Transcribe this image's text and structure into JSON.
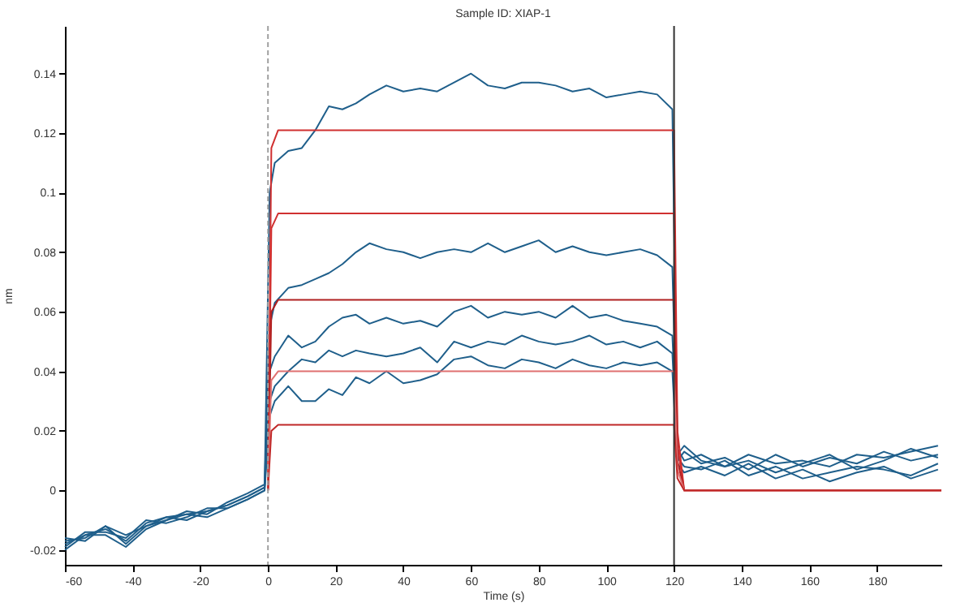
{
  "chart_data": {
    "type": "line",
    "title": "Sample ID: XIAP-1",
    "xlabel": "Time (s)",
    "ylabel": "nm",
    "xlim": [
      -60,
      199
    ],
    "ylim": [
      -0.025,
      0.156
    ],
    "xticks": [
      -60,
      -40,
      -20,
      0,
      20,
      40,
      60,
      80,
      100,
      120,
      140,
      160,
      180
    ],
    "yticks": [
      -0.02,
      0,
      0.02,
      0.04,
      0.06,
      0.08,
      0.1,
      0.12,
      0.14
    ],
    "grid": false,
    "marker": "none",
    "line_style": "solid",
    "ref_lines": [
      {
        "axis": "x",
        "value": 0,
        "color": "#a0a0a0",
        "line_style": "dashed"
      },
      {
        "axis": "x",
        "value": 120,
        "color": "#303030",
        "line_style": "solid"
      }
    ],
    "series": [
      {
        "color": "#1f5f8b",
        "x": [
          -60,
          -54,
          -48,
          -42,
          -36,
          -30,
          -24,
          -18,
          -12,
          -6,
          -1,
          0.5,
          2,
          6,
          10,
          14,
          18,
          22,
          26,
          30,
          35,
          40,
          45,
          50,
          55,
          60,
          65,
          70,
          75,
          80,
          85,
          90,
          95,
          100,
          105,
          110,
          115,
          119.5,
          121,
          123,
          128,
          135,
          142,
          150,
          158,
          166,
          174,
          182,
          190,
          198
        ],
        "values": [
          -0.018,
          -0.015,
          -0.013,
          -0.017,
          -0.011,
          -0.009,
          -0.008,
          -0.007,
          -0.005,
          -0.002,
          0.001,
          0.1,
          0.11,
          0.114,
          0.115,
          0.121,
          0.129,
          0.128,
          0.13,
          0.133,
          0.136,
          0.134,
          0.135,
          0.134,
          0.137,
          0.14,
          0.136,
          0.135,
          0.137,
          0.137,
          0.136,
          0.134,
          0.135,
          0.132,
          0.133,
          0.134,
          0.133,
          0.128,
          0.012,
          0.015,
          0.01,
          0.008,
          0.012,
          0.009,
          0.01,
          0.008,
          0.012,
          0.011,
          0.013,
          0.015
        ]
      },
      {
        "color": "#1f5f8b",
        "x": [
          -60,
          -54,
          -48,
          -42,
          -36,
          -30,
          -24,
          -18,
          -12,
          -6,
          -1,
          0.5,
          2,
          6,
          10,
          14,
          18,
          22,
          26,
          30,
          35,
          40,
          45,
          50,
          55,
          60,
          65,
          70,
          75,
          80,
          85,
          90,
          95,
          100,
          105,
          110,
          115,
          119.5,
          121,
          123,
          128,
          135,
          142,
          150,
          158,
          166,
          174,
          182,
          190,
          198
        ],
        "values": [
          -0.016,
          -0.017,
          -0.012,
          -0.015,
          -0.012,
          -0.01,
          -0.007,
          -0.008,
          -0.004,
          -0.001,
          0.002,
          0.055,
          0.063,
          0.068,
          0.069,
          0.071,
          0.073,
          0.076,
          0.08,
          0.083,
          0.081,
          0.08,
          0.078,
          0.08,
          0.081,
          0.08,
          0.083,
          0.08,
          0.082,
          0.084,
          0.08,
          0.082,
          0.08,
          0.079,
          0.08,
          0.081,
          0.079,
          0.075,
          0.01,
          0.013,
          0.009,
          0.011,
          0.007,
          0.012,
          0.008,
          0.011,
          0.009,
          0.013,
          0.01,
          0.012
        ]
      },
      {
        "color": "#1f5f8b",
        "x": [
          -60,
          -54,
          -48,
          -42,
          -36,
          -30,
          -24,
          -18,
          -12,
          -6,
          -1,
          0.5,
          2,
          6,
          10,
          14,
          18,
          22,
          26,
          30,
          35,
          40,
          45,
          50,
          55,
          60,
          65,
          70,
          75,
          80,
          85,
          90,
          95,
          100,
          105,
          110,
          115,
          119.5,
          121,
          123,
          128,
          135,
          142,
          150,
          158,
          166,
          174,
          182,
          190,
          198
        ],
        "values": [
          -0.019,
          -0.014,
          -0.014,
          -0.016,
          -0.01,
          -0.011,
          -0.009,
          -0.006,
          -0.006,
          -0.003,
          0.0,
          0.04,
          0.045,
          0.052,
          0.048,
          0.05,
          0.055,
          0.058,
          0.059,
          0.056,
          0.058,
          0.056,
          0.057,
          0.055,
          0.06,
          0.062,
          0.058,
          0.06,
          0.059,
          0.06,
          0.058,
          0.062,
          0.058,
          0.059,
          0.057,
          0.056,
          0.055,
          0.052,
          0.014,
          0.01,
          0.012,
          0.008,
          0.01,
          0.006,
          0.009,
          0.012,
          0.007,
          0.01,
          0.014,
          0.011
        ]
      },
      {
        "color": "#1f5f8b",
        "x": [
          -60,
          -54,
          -48,
          -42,
          -36,
          -30,
          -24,
          -18,
          -12,
          -6,
          -1,
          0.5,
          2,
          6,
          10,
          14,
          18,
          22,
          26,
          30,
          35,
          40,
          45,
          50,
          55,
          60,
          65,
          70,
          75,
          80,
          85,
          90,
          95,
          100,
          105,
          110,
          115,
          119.5,
          121,
          123,
          128,
          135,
          142,
          150,
          158,
          166,
          174,
          182,
          190,
          198
        ],
        "values": [
          -0.017,
          -0.016,
          -0.012,
          -0.018,
          -0.012,
          -0.009,
          -0.01,
          -0.007,
          -0.005,
          -0.002,
          0.001,
          0.03,
          0.035,
          0.04,
          0.044,
          0.043,
          0.047,
          0.045,
          0.047,
          0.046,
          0.045,
          0.046,
          0.048,
          0.043,
          0.05,
          0.048,
          0.05,
          0.049,
          0.052,
          0.05,
          0.049,
          0.05,
          0.052,
          0.049,
          0.05,
          0.048,
          0.05,
          0.046,
          0.011,
          0.008,
          0.007,
          0.01,
          0.005,
          0.008,
          0.004,
          0.006,
          0.008,
          0.007,
          0.005,
          0.009
        ]
      },
      {
        "color": "#1f5f8b",
        "x": [
          -60,
          -54,
          -48,
          -42,
          -36,
          -30,
          -24,
          -18,
          -12,
          -6,
          -1,
          0.5,
          2,
          6,
          10,
          14,
          18,
          22,
          26,
          30,
          35,
          40,
          45,
          50,
          55,
          60,
          65,
          70,
          75,
          80,
          85,
          90,
          95,
          100,
          105,
          110,
          115,
          119.5,
          121,
          123,
          128,
          135,
          142,
          150,
          158,
          166,
          174,
          182,
          190,
          198
        ],
        "values": [
          -0.02,
          -0.015,
          -0.015,
          -0.019,
          -0.013,
          -0.01,
          -0.008,
          -0.009,
          -0.006,
          -0.003,
          0.0,
          0.025,
          0.03,
          0.035,
          0.03,
          0.03,
          0.034,
          0.032,
          0.038,
          0.036,
          0.04,
          0.036,
          0.037,
          0.039,
          0.044,
          0.045,
          0.042,
          0.041,
          0.044,
          0.043,
          0.041,
          0.044,
          0.042,
          0.041,
          0.043,
          0.042,
          0.043,
          0.04,
          0.009,
          0.006,
          0.008,
          0.005,
          0.009,
          0.004,
          0.007,
          0.003,
          0.006,
          0.008,
          0.004,
          0.007
        ]
      },
      {
        "color": "#d03030",
        "x": [
          0,
          1,
          3,
          120,
          121,
          123,
          199
        ],
        "values": [
          0,
          0.115,
          0.121,
          0.121,
          0.02,
          0,
          0
        ]
      },
      {
        "color": "#d03030",
        "x": [
          0,
          1,
          3,
          120,
          121,
          123,
          199
        ],
        "values": [
          0,
          0.088,
          0.093,
          0.093,
          0.015,
          0,
          0
        ]
      },
      {
        "color": "#b02020",
        "x": [
          0,
          1,
          3,
          120,
          121,
          123,
          199
        ],
        "values": [
          0,
          0.06,
          0.064,
          0.064,
          0.01,
          0,
          0
        ]
      },
      {
        "color": "#e07070",
        "x": [
          0,
          1,
          3,
          120,
          121,
          123,
          199
        ],
        "values": [
          0,
          0.037,
          0.04,
          0.04,
          0.007,
          0,
          0
        ]
      },
      {
        "color": "#c02828",
        "x": [
          0,
          1,
          3,
          120,
          121,
          123,
          199
        ],
        "values": [
          0,
          0.02,
          0.022,
          0.022,
          0.004,
          0,
          0
        ]
      }
    ]
  }
}
